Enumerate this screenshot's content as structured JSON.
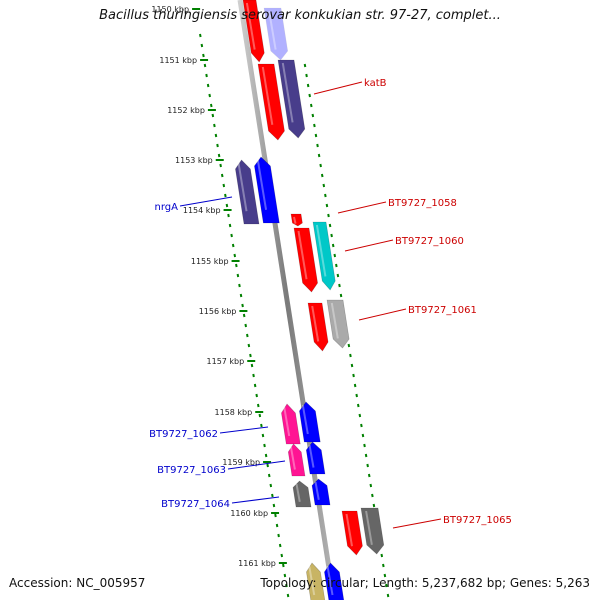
{
  "title": "Bacillus thuringiensis serovar konkukian str. 97-27, complet...",
  "accession": "Accession: NC_005957",
  "topology": "Topology: circular; Length: 5,237,682 bp; Genes: 5,263",
  "colors": {
    "red": "#ff0000",
    "blue": "#0000ff",
    "navy": "#483d8b",
    "cyan": "#00c8c8",
    "gray": "#aaaaaa",
    "dark-gray": "#666666",
    "magenta": "#ff1493",
    "olive": "#c8b464",
    "tick": "#008000",
    "forward-label": "#cc0000",
    "reverse-label": "#0000cc",
    "backbone": "#888888"
  },
  "ticks": [
    {
      "label": "1150 kbp",
      "faded": true
    },
    {
      "label": "1151 kbp"
    },
    {
      "label": "1152 kbp"
    },
    {
      "label": "1153 kbp"
    },
    {
      "label": "1154 kbp"
    },
    {
      "label": "1155 kbp"
    },
    {
      "label": "1156 kbp"
    },
    {
      "label": "1157 kbp"
    },
    {
      "label": "1158 kbp"
    },
    {
      "label": "1159 kbp"
    },
    {
      "label": "1160 kbp"
    },
    {
      "label": "1161 kbp"
    }
  ],
  "gene_labels": {
    "katB": "katB",
    "nrgA": "nrgA",
    "bt1058": "BT9727_1058",
    "bt1060": "BT9727_1060",
    "bt1061": "BT9727_1061",
    "bt1062": "BT9727_1062",
    "bt1063": "BT9727_1063",
    "bt1064": "BT9727_1064",
    "bt1065": "BT9727_1065"
  }
}
